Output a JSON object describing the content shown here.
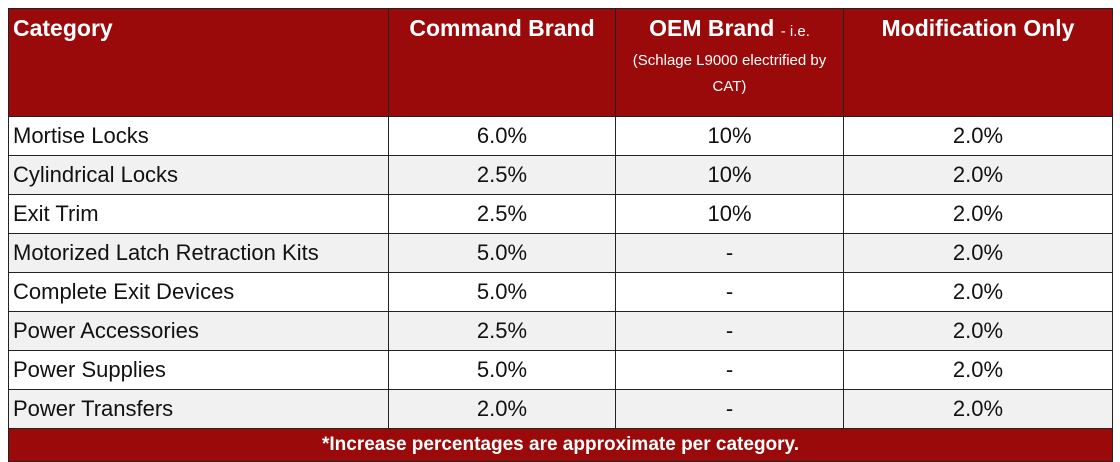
{
  "table": {
    "header": {
      "category": "Category",
      "command": "Command Brand",
      "oem": "OEM Brand",
      "oem_suffix": "- i.e.",
      "oem_note": "(Schlage L9000 electrified by CAT)",
      "modification": "Modification Only"
    },
    "rows": [
      [
        "Mortise Locks",
        "6.0%",
        "10%",
        "2.0%"
      ],
      [
        "Cylindrical Locks",
        "2.5%",
        "10%",
        "2.0%"
      ],
      [
        "Exit Trim",
        "2.5%",
        "10%",
        "2.0%"
      ],
      [
        "Motorized Latch Retraction Kits",
        "5.0%",
        "-",
        "2.0%"
      ],
      [
        "Complete Exit Devices",
        "5.0%",
        "-",
        "2.0%"
      ],
      [
        "Power Accessories",
        "2.5%",
        "-",
        "2.0%"
      ],
      [
        "Power Supplies",
        "5.0%",
        "-",
        "2.0%"
      ],
      [
        "Power Transfers",
        "2.0%",
        "-",
        "2.0%"
      ]
    ],
    "footnote": "*Increase percentages are approximate per category."
  }
}
